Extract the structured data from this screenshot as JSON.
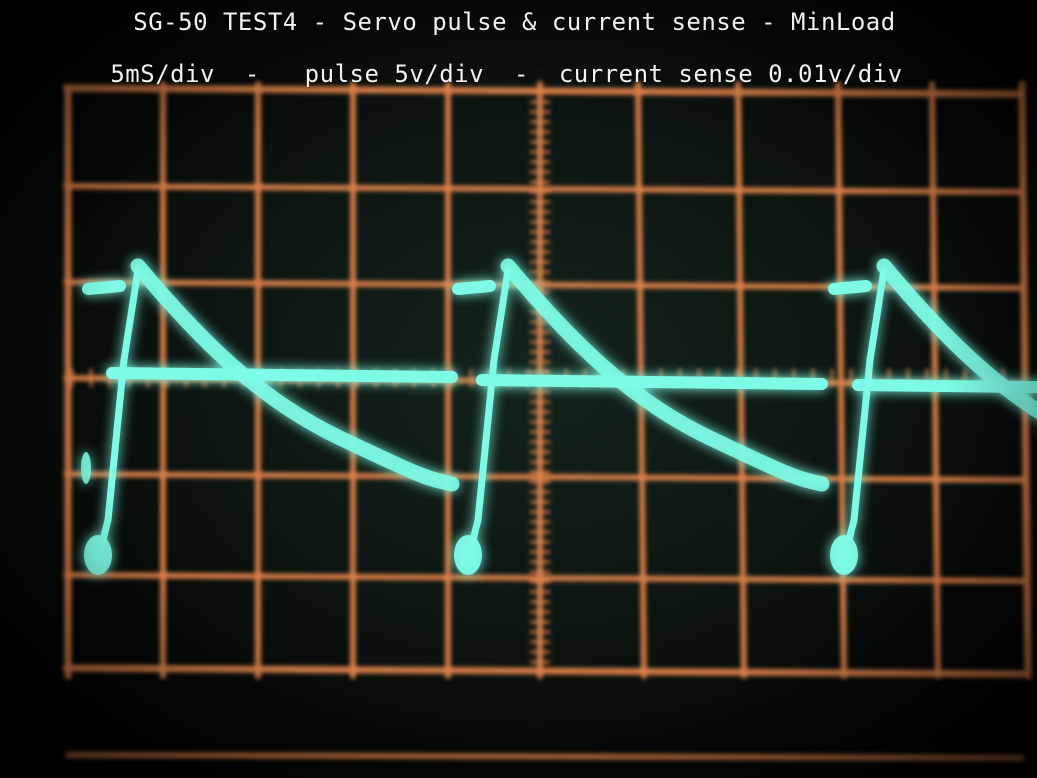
{
  "caption": {
    "title": "SG-50 TEST4 - Servo pulse & current sense - MinLoad",
    "settings": "5mS/div  -   pulse 5v/div  -  current sense 0.01v/div"
  },
  "colors": {
    "background": "#050302",
    "graticule": "#e0834a",
    "trace": "#7dfbe6",
    "trace_glow": "#1fd8c4",
    "text": "#f2f2f2"
  },
  "graticule": {
    "columns": 10,
    "rows": 8
  }
}
